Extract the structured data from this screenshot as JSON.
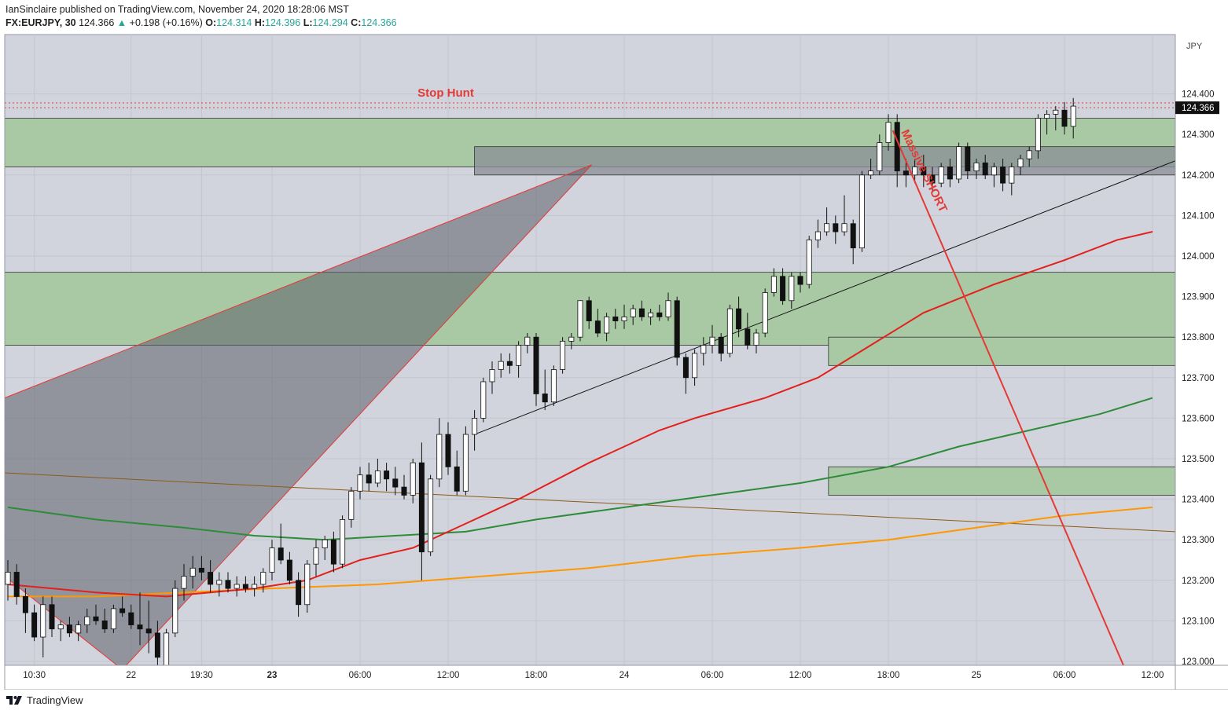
{
  "header": {
    "published_line": "IanSinclaire published on TradingView.com, November 24, 2020 18:28:06 MST",
    "symbol": "FX:EURJPY, 30",
    "last": "124.366",
    "change_arrow": "▲",
    "change": "+0.198 (+0.16%)",
    "o_label": "O:",
    "o_value": "124.314",
    "h_label": "H:",
    "h_value": "124.396",
    "l_label": "L:",
    "l_value": "124.294",
    "c_label": "C:",
    "c_value": "124.366"
  },
  "footer": {
    "brand": "TradingView",
    "logo_icon": "tradingview-logo-icon"
  },
  "colors": {
    "background": "#d1d4dc",
    "zone_green": "#a9c9a4",
    "zone_gray": "#8a8d95",
    "ema_red": "#e3201b",
    "ema_green": "#2e8b3a",
    "ema_orange": "#ff9800",
    "annotation_red": "#e53935",
    "trend_brown": "#8b5a1a"
  },
  "chart_data": {
    "type": "candlestick",
    "currency": "JPY",
    "y_ticks": [
      "124.400",
      "124.300",
      "124.200",
      "124.100",
      "124.000",
      "123.900",
      "123.800",
      "123.700",
      "123.600",
      "123.500",
      "123.400",
      "123.300",
      "123.200",
      "123.100",
      "123.000"
    ],
    "ylim": [
      122.98,
      124.49
    ],
    "x_ticks": [
      "10:30",
      "22",
      "19:30",
      "23",
      "06:00",
      "12:00",
      "18:00",
      "24",
      "06:00",
      "12:00",
      "18:00",
      "25",
      "06:00",
      "12:00"
    ],
    "x_tick_index": [
      3,
      14,
      22,
      30,
      40,
      50,
      60,
      70,
      80,
      90,
      100,
      110,
      120,
      130
    ],
    "bold_ticks": [
      "23"
    ],
    "price_label": "124.366",
    "annotations": [
      {
        "text": "Stop Hunt",
        "color": "#e53935"
      },
      {
        "text": "Massive SHORT",
        "color": "#e53935"
      }
    ],
    "candles": [
      [
        123.19,
        123.25,
        123.15,
        123.22
      ],
      [
        123.22,
        123.24,
        123.14,
        123.16
      ],
      [
        123.16,
        123.18,
        123.07,
        123.12
      ],
      [
        123.12,
        123.14,
        123.05,
        123.06
      ],
      [
        123.06,
        123.16,
        123.01,
        123.14
      ],
      [
        123.14,
        123.16,
        123.06,
        123.08
      ],
      [
        123.08,
        123.1,
        123.05,
        123.09
      ],
      [
        123.09,
        123.11,
        123.06,
        123.07
      ],
      [
        123.07,
        123.1,
        123.05,
        123.09
      ],
      [
        123.09,
        123.13,
        123.07,
        123.11
      ],
      [
        123.11,
        123.14,
        123.09,
        123.1
      ],
      [
        123.1,
        123.13,
        123.07,
        123.08
      ],
      [
        123.08,
        123.14,
        123.07,
        123.13
      ],
      [
        123.13,
        123.16,
        123.11,
        123.12
      ],
      [
        123.12,
        123.14,
        123.08,
        123.09
      ],
      [
        123.09,
        123.17,
        123.04,
        123.08
      ],
      [
        123.08,
        123.15,
        123.02,
        123.07
      ],
      [
        123.07,
        123.1,
        122.99,
        123.01
      ],
      [
        122.99,
        123.08,
        122.98,
        123.07
      ],
      [
        123.07,
        123.2,
        123.06,
        123.18
      ],
      [
        123.18,
        123.24,
        123.15,
        123.21
      ],
      [
        123.21,
        123.26,
        123.18,
        123.23
      ],
      [
        123.23,
        123.26,
        123.2,
        123.22
      ],
      [
        123.22,
        123.25,
        123.17,
        123.19
      ],
      [
        123.19,
        123.22,
        123.16,
        123.2
      ],
      [
        123.2,
        123.22,
        123.17,
        123.18
      ],
      [
        123.18,
        123.21,
        123.16,
        123.19
      ],
      [
        123.19,
        123.21,
        123.17,
        123.18
      ],
      [
        123.18,
        123.21,
        123.16,
        123.19
      ],
      [
        123.19,
        123.23,
        123.17,
        123.22
      ],
      [
        123.22,
        123.3,
        123.2,
        123.28
      ],
      [
        123.28,
        123.34,
        123.24,
        123.25
      ],
      [
        123.25,
        123.27,
        123.19,
        123.2
      ],
      [
        123.2,
        123.22,
        123.11,
        123.14
      ],
      [
        123.14,
        123.25,
        123.12,
        123.24
      ],
      [
        123.24,
        123.3,
        123.21,
        123.28
      ],
      [
        123.28,
        123.31,
        123.25,
        123.3
      ],
      [
        123.3,
        123.32,
        123.22,
        123.24
      ],
      [
        123.24,
        123.36,
        123.23,
        123.35
      ],
      [
        123.35,
        123.43,
        123.33,
        123.42
      ],
      [
        123.42,
        123.48,
        123.4,
        123.46
      ],
      [
        123.46,
        123.49,
        123.42,
        123.44
      ],
      [
        123.44,
        123.5,
        123.43,
        123.47
      ],
      [
        123.47,
        123.49,
        123.42,
        123.45
      ],
      [
        123.45,
        123.48,
        123.41,
        123.43
      ],
      [
        123.43,
        123.46,
        123.4,
        123.41
      ],
      [
        123.41,
        123.5,
        123.39,
        123.49
      ],
      [
        123.49,
        123.54,
        123.2,
        123.27
      ],
      [
        123.27,
        123.46,
        123.26,
        123.45
      ],
      [
        123.45,
        123.6,
        123.43,
        123.56
      ],
      [
        123.56,
        123.59,
        123.46,
        123.48
      ],
      [
        123.48,
        123.52,
        123.41,
        123.42
      ],
      [
        123.42,
        123.58,
        123.41,
        123.56
      ],
      [
        123.56,
        123.62,
        123.52,
        123.6
      ],
      [
        123.6,
        123.7,
        123.59,
        123.69
      ],
      [
        123.69,
        123.74,
        123.66,
        123.72
      ],
      [
        123.72,
        123.76,
        123.7,
        123.74
      ],
      [
        123.74,
        123.76,
        123.71,
        123.73
      ],
      [
        123.73,
        123.79,
        123.7,
        123.78
      ],
      [
        123.78,
        123.81,
        123.76,
        123.8
      ],
      [
        123.8,
        123.81,
        123.63,
        123.66
      ],
      [
        123.66,
        123.72,
        123.62,
        123.64
      ],
      [
        123.64,
        123.73,
        123.63,
        123.72
      ],
      [
        123.72,
        123.8,
        123.71,
        123.79
      ],
      [
        123.79,
        123.81,
        123.77,
        123.8
      ],
      [
        123.8,
        123.89,
        123.79,
        123.89
      ],
      [
        123.89,
        123.9,
        123.82,
        123.84
      ],
      [
        123.84,
        123.87,
        123.8,
        123.81
      ],
      [
        123.81,
        123.86,
        123.79,
        123.85
      ],
      [
        123.85,
        123.87,
        123.82,
        123.84
      ],
      [
        123.84,
        123.88,
        123.82,
        123.85
      ],
      [
        123.85,
        123.88,
        123.83,
        123.87
      ],
      [
        123.87,
        123.89,
        123.84,
        123.85
      ],
      [
        123.85,
        123.87,
        123.83,
        123.86
      ],
      [
        123.86,
        123.88,
        123.84,
        123.85
      ],
      [
        123.85,
        123.91,
        123.84,
        123.89
      ],
      [
        123.89,
        123.9,
        123.73,
        123.75
      ],
      [
        123.75,
        123.76,
        123.66,
        123.7
      ],
      [
        123.7,
        123.77,
        123.68,
        123.76
      ],
      [
        123.76,
        123.8,
        123.73,
        123.78
      ],
      [
        123.78,
        123.83,
        123.76,
        123.8
      ],
      [
        123.8,
        123.81,
        123.74,
        123.76
      ],
      [
        123.76,
        123.88,
        123.75,
        123.87
      ],
      [
        123.87,
        123.9,
        123.8,
        123.82
      ],
      [
        123.82,
        123.86,
        123.77,
        123.78
      ],
      [
        123.78,
        123.82,
        123.76,
        123.81
      ],
      [
        123.81,
        123.92,
        123.8,
        123.91
      ],
      [
        123.91,
        123.97,
        123.9,
        123.95
      ],
      [
        123.95,
        123.97,
        123.88,
        123.89
      ],
      [
        123.89,
        123.96,
        123.87,
        123.95
      ],
      [
        123.95,
        123.96,
        123.91,
        123.93
      ],
      [
        123.93,
        124.05,
        123.92,
        124.04
      ],
      [
        124.04,
        124.09,
        124.02,
        124.06
      ],
      [
        124.06,
        124.12,
        124.05,
        124.08
      ],
      [
        124.08,
        124.1,
        124.03,
        124.06
      ],
      [
        124.06,
        124.15,
        124.05,
        124.08
      ],
      [
        124.08,
        124.09,
        123.98,
        124.02
      ],
      [
        124.02,
        124.21,
        124.01,
        124.2
      ],
      [
        124.2,
        124.24,
        124.19,
        124.21
      ],
      [
        124.21,
        124.3,
        124.2,
        124.28
      ],
      [
        124.28,
        124.35,
        124.26,
        124.33
      ],
      [
        124.33,
        124.35,
        124.17,
        124.21
      ],
      [
        124.21,
        124.24,
        124.17,
        124.2
      ],
      [
        124.2,
        124.24,
        124.18,
        124.22
      ],
      [
        124.22,
        124.25,
        124.17,
        124.2
      ],
      [
        124.2,
        124.22,
        124.16,
        124.18
      ],
      [
        124.18,
        124.23,
        124.17,
        124.22
      ],
      [
        124.22,
        124.24,
        124.17,
        124.19
      ],
      [
        124.19,
        124.28,
        124.18,
        124.27
      ],
      [
        124.27,
        124.28,
        124.19,
        124.21
      ],
      [
        124.21,
        124.24,
        124.19,
        124.23
      ],
      [
        124.23,
        124.25,
        124.19,
        124.2
      ],
      [
        124.2,
        124.23,
        124.17,
        124.22
      ],
      [
        124.22,
        124.24,
        124.16,
        124.18
      ],
      [
        124.18,
        124.23,
        124.15,
        124.22
      ],
      [
        124.22,
        124.25,
        124.2,
        124.24
      ],
      [
        124.24,
        124.27,
        124.22,
        124.26
      ],
      [
        124.26,
        124.35,
        124.24,
        124.34
      ],
      [
        124.34,
        124.36,
        124.3,
        124.35
      ],
      [
        124.35,
        124.37,
        124.31,
        124.36
      ],
      [
        124.36,
        124.38,
        124.3,
        124.32
      ],
      [
        124.32,
        124.39,
        124.29,
        124.37
      ]
    ],
    "ema_red": [
      [
        0,
        123.19
      ],
      [
        10,
        123.17
      ],
      [
        18,
        123.16
      ],
      [
        28,
        123.18
      ],
      [
        34,
        123.2
      ],
      [
        40,
        123.25
      ],
      [
        46,
        123.28
      ],
      [
        52,
        123.34
      ],
      [
        58,
        123.4
      ],
      [
        66,
        123.49
      ],
      [
        74,
        123.57
      ],
      [
        78,
        123.6
      ],
      [
        86,
        123.65
      ],
      [
        92,
        123.7
      ],
      [
        98,
        123.78
      ],
      [
        104,
        123.86
      ],
      [
        112,
        123.93
      ],
      [
        120,
        123.99
      ],
      [
        126,
        124.04
      ],
      [
        130,
        124.06
      ]
    ],
    "ema_green": [
      [
        0,
        123.38
      ],
      [
        10,
        123.35
      ],
      [
        20,
        123.33
      ],
      [
        28,
        123.31
      ],
      [
        36,
        123.3
      ],
      [
        44,
        123.31
      ],
      [
        52,
        123.32
      ],
      [
        60,
        123.35
      ],
      [
        70,
        123.38
      ],
      [
        80,
        123.41
      ],
      [
        90,
        123.44
      ],
      [
        100,
        123.48
      ],
      [
        108,
        123.53
      ],
      [
        116,
        123.57
      ],
      [
        124,
        123.61
      ],
      [
        130,
        123.65
      ]
    ],
    "ema_orange": [
      [
        0,
        123.16
      ],
      [
        10,
        123.16
      ],
      [
        20,
        123.17
      ],
      [
        30,
        123.18
      ],
      [
        42,
        123.19
      ],
      [
        54,
        123.21
      ],
      [
        66,
        123.23
      ],
      [
        78,
        123.26
      ],
      [
        90,
        123.28
      ],
      [
        100,
        123.3
      ],
      [
        110,
        123.33
      ],
      [
        120,
        123.36
      ],
      [
        130,
        123.38
      ]
    ]
  }
}
